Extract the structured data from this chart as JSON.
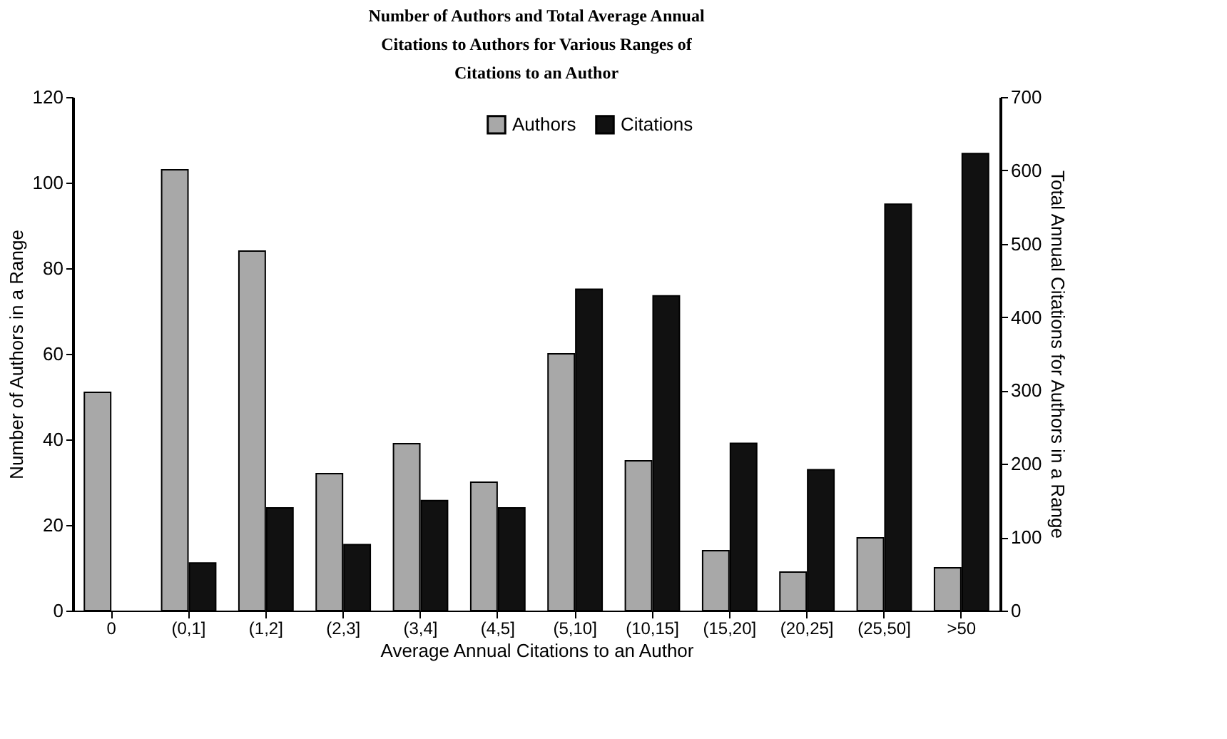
{
  "chart_data": {
    "type": "bar",
    "title": "Number of Authors and Total Average Annual Citations to Authors for Various Ranges of Citations to an Author",
    "xlabel": "Average Annual Citations to an Author",
    "ylabel": "Number of Authors in a Range",
    "y2label": "Total Annual Citations for Authors in a Range",
    "categories": [
      "0",
      "(0,1]",
      "(1,2]",
      "(2,3]",
      "(3,4]",
      "(4,5]",
      "(5,10]",
      "(10,15]",
      "(15,20]",
      "(20,25]",
      "(25,50]",
      ">50"
    ],
    "series": [
      {
        "name": "Authors",
        "color": "#a8a8a8",
        "values": [
          51,
          103,
          84,
          32,
          39,
          30,
          60,
          35,
          14,
          9,
          17,
          10
        ]
      },
      {
        "name": "Citations",
        "color": "#111111",
        "axis": "y2",
        "values": [
          null,
          65,
          140,
          90,
          150,
          140,
          438,
          429,
          228,
          192,
          554,
          623
        ]
      }
    ],
    "ylim": [
      0,
      120
    ],
    "yticks": [
      0,
      20,
      40,
      60,
      80,
      100,
      120
    ],
    "y2lim": [
      0,
      700
    ],
    "y2ticks": [
      0,
      100,
      200,
      300,
      400,
      500,
      600,
      700
    ],
    "grid": false,
    "legend": "top"
  }
}
